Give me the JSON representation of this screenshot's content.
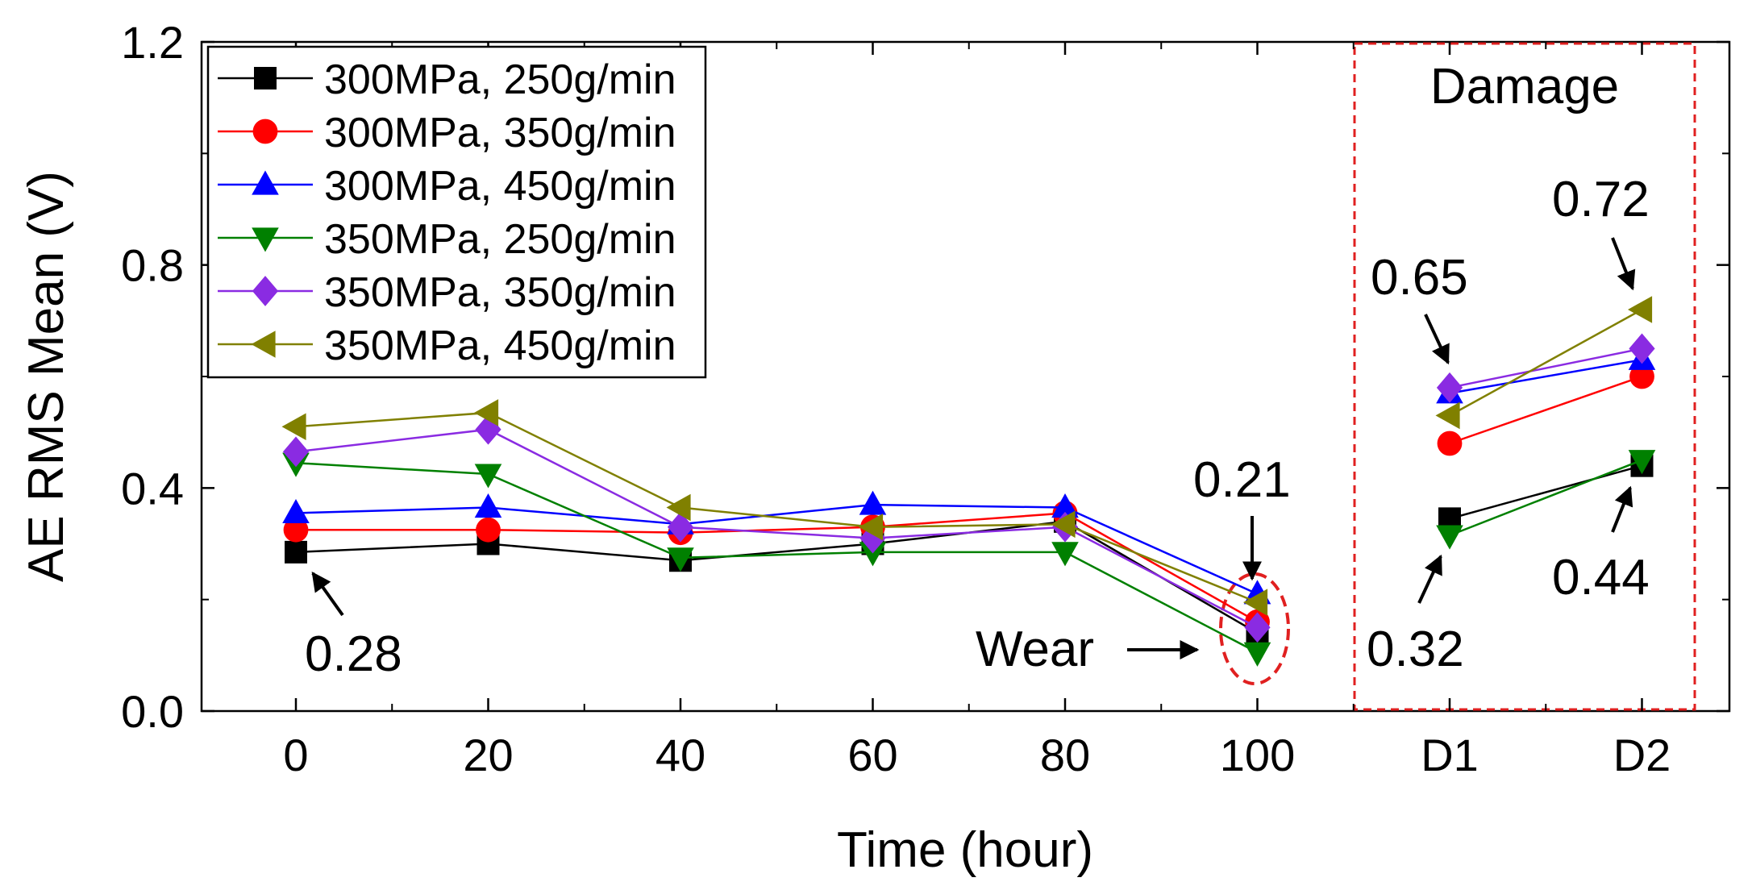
{
  "chart_data": {
    "type": "line",
    "title": "",
    "xlabel": "Time (hour)",
    "ylabel": "AE RMS Mean (V)",
    "categories": [
      "0",
      "20",
      "40",
      "60",
      "80",
      "100",
      "D1",
      "D2"
    ],
    "ylim": [
      0.0,
      1.2
    ],
    "yticks": [
      "0.0",
      "0.4",
      "0.8",
      "1.2"
    ],
    "grid": false,
    "legend_position": "top-left",
    "series": [
      {
        "name": "300MPa, 250g/min",
        "color": "#000000",
        "marker": "square",
        "values": [
          0.285,
          0.3,
          0.27,
          0.3,
          0.34,
          0.14,
          0.345,
          0.44
        ]
      },
      {
        "name": "300MPa, 350g/min",
        "color": "#ff0000",
        "marker": "circle",
        "values": [
          0.325,
          0.325,
          0.32,
          0.33,
          0.355,
          0.16,
          0.48,
          0.6
        ]
      },
      {
        "name": "300MPa, 450g/min",
        "color": "#0000ff",
        "marker": "triangle-up",
        "values": [
          0.355,
          0.365,
          0.335,
          0.37,
          0.365,
          0.21,
          0.57,
          0.63
        ]
      },
      {
        "name": "350MPa, 250g/min",
        "color": "#008000",
        "marker": "triangle-down",
        "values": [
          0.445,
          0.425,
          0.275,
          0.285,
          0.285,
          0.105,
          0.315,
          0.45
        ]
      },
      {
        "name": "350MPa, 350g/min",
        "color": "#8a2be2",
        "marker": "diamond",
        "values": [
          0.465,
          0.505,
          0.33,
          0.31,
          0.33,
          0.15,
          0.58,
          0.65
        ]
      },
      {
        "name": "350MPa, 450g/min",
        "color": "#808000",
        "marker": "triangle-left",
        "values": [
          0.51,
          0.535,
          0.365,
          0.33,
          0.335,
          0.195,
          0.53,
          0.72
        ]
      }
    ],
    "annotations": [
      {
        "id": "a028",
        "text": "0.28"
      },
      {
        "id": "a021",
        "text": "0.21"
      },
      {
        "id": "awear",
        "text": "Wear"
      },
      {
        "id": "a065",
        "text": "0.65"
      },
      {
        "id": "a072",
        "text": "0.72"
      },
      {
        "id": "a032",
        "text": "0.32"
      },
      {
        "id": "a044",
        "text": "0.44"
      },
      {
        "id": "adamage",
        "text": "Damage"
      }
    ]
  }
}
